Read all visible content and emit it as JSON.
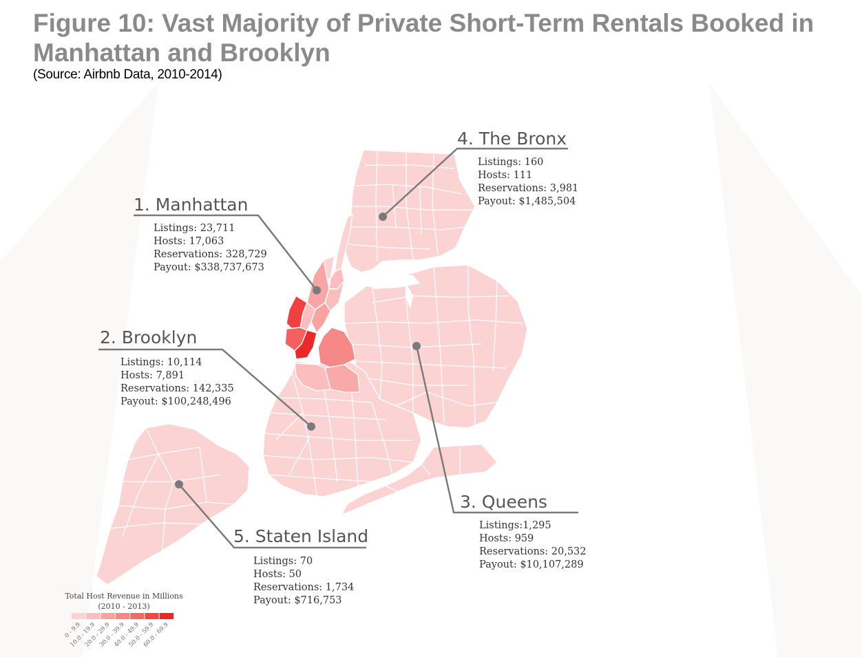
{
  "figure": {
    "title": "Figure 10: Vast Majority of Private Short-Term Rentals Booked in Manhattan and Brooklyn",
    "source": "(Source: Airbnb Data, 2010-2014)"
  },
  "boroughs": [
    {
      "key": "manhattan",
      "title": "1. Manhattan",
      "listings": "Listings: 23,711",
      "hosts": "Hosts: 17,063",
      "reservations": "Reservations: 328,729",
      "payout": "Payout: $338,737,673"
    },
    {
      "key": "brooklyn",
      "title": "2. Brooklyn",
      "listings": "Listings: 10,114",
      "hosts": "Hosts: 7,891",
      "reservations": "Reservations: 142,335",
      "payout": "Payout: $100,248,496"
    },
    {
      "key": "queens",
      "title": "3. Queens",
      "listings": "Listings:1,295",
      "hosts": "Hosts: 959",
      "reservations": "Reservations: 20,532",
      "payout": "Payout: $10,107,289"
    },
    {
      "key": "bronx",
      "title": "4. The Bronx",
      "listings": "Listings: 160",
      "hosts": "Hosts: 111",
      "reservations": "Reservations: 3,981",
      "payout": "Payout: $1,485,504"
    },
    {
      "key": "staten_island",
      "title": "5. Staten Island",
      "listings": "Listings: 70",
      "hosts": "Hosts: 50",
      "reservations": "Reservations: 1,734",
      "payout": "Payout: $716,753"
    }
  ],
  "legend": {
    "title": "Total Host Revenue in Millions",
    "subtitle": "(2010 - 2013)",
    "bins": [
      "0 - 9.9",
      "10.0 - 19.9",
      "20.0 - 29.9",
      "30.0 - 39.9",
      "40.0 - 49.9",
      "50.0 - 59.9",
      "60.0 - 69.9"
    ],
    "colors": [
      "#fcd4d4",
      "#fbbcbc",
      "#f9a2a2",
      "#f78686",
      "#f46868",
      "#f04646",
      "#ec2626"
    ]
  },
  "colors": {
    "base_fill": "#fcd3d3",
    "tract_line": "#ffffff",
    "leader_line": "#7a7a7a"
  }
}
